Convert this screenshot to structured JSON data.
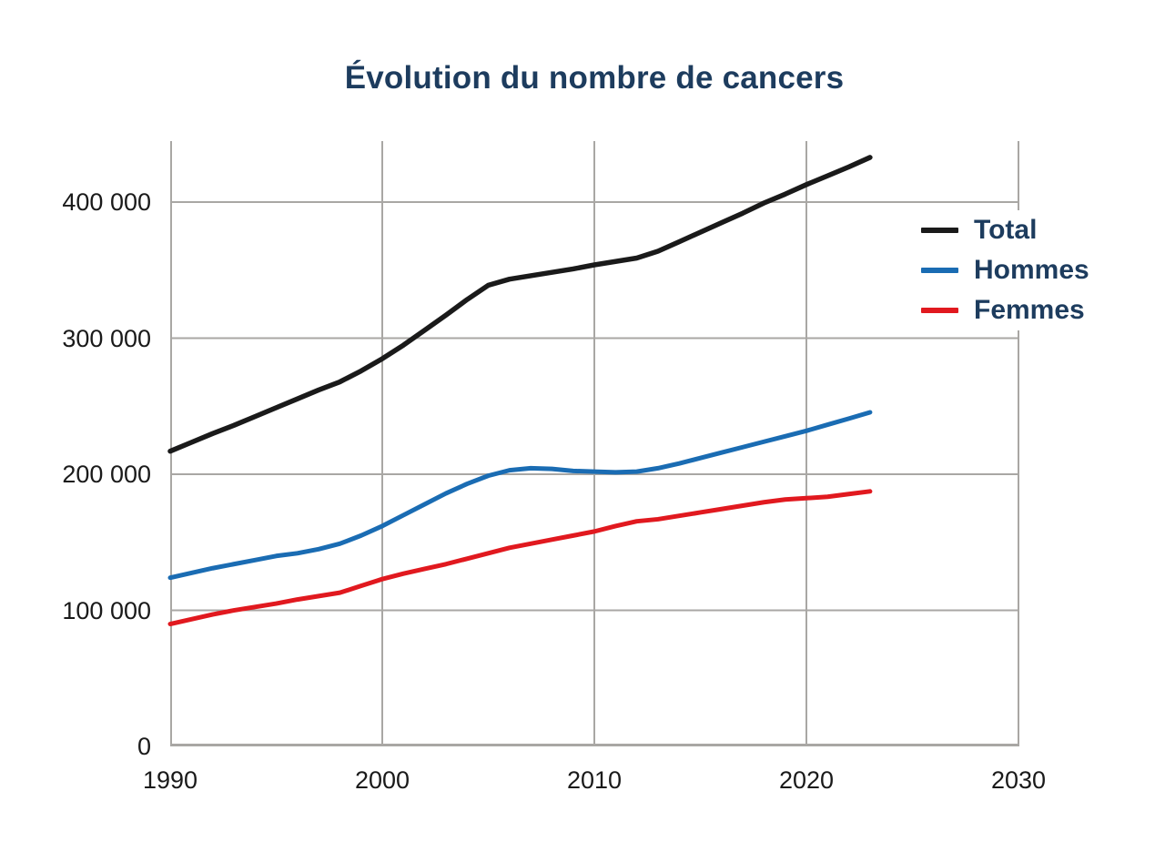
{
  "page": {
    "background_color": "#ffffff"
  },
  "title": {
    "text": "Évolution du nombre de cancers",
    "color": "#1d3c5e"
  },
  "legend": {
    "position": "upper-right",
    "items": [
      {
        "label": "Total",
        "color": "#1a1a1a"
      },
      {
        "label": "Hommes",
        "color": "#1a6cb3"
      },
      {
        "label": "Femmes",
        "color": "#e1191f"
      }
    ]
  },
  "chart_data": {
    "type": "line",
    "title": "Évolution du nombre de cancers",
    "xlabel": "",
    "ylabel": "",
    "xlim": [
      1990,
      2030
    ],
    "ylim": [
      0,
      445000
    ],
    "grid": true,
    "grid_color": "#a9a7a4",
    "axis_color": "#a9a7a4",
    "x_gridlines": [
      2000,
      2010,
      2020,
      2030
    ],
    "y_gridlines": [
      100000,
      200000,
      300000,
      400000
    ],
    "x_ticks": [
      {
        "value": 1990,
        "label": "1990"
      },
      {
        "value": 2000,
        "label": "2000"
      },
      {
        "value": 2010,
        "label": "2010"
      },
      {
        "value": 2020,
        "label": "2020"
      },
      {
        "value": 2030,
        "label": "2030"
      }
    ],
    "y_ticks": [
      {
        "value": 0,
        "label": "0"
      },
      {
        "value": 100000,
        "label": "100 000"
      },
      {
        "value": 200000,
        "label": "200 000"
      },
      {
        "value": 300000,
        "label": "300 000"
      },
      {
        "value": 400000,
        "label": "400 000"
      }
    ],
    "x": [
      1990,
      1991,
      1992,
      1993,
      1994,
      1995,
      1996,
      1997,
      1998,
      1999,
      2000,
      2001,
      2002,
      2003,
      2004,
      2005,
      2006,
      2007,
      2008,
      2009,
      2010,
      2011,
      2012,
      2013,
      2014,
      2015,
      2016,
      2017,
      2018,
      2019,
      2020,
      2021,
      2022,
      2023
    ],
    "series": [
      {
        "name": "Total",
        "color": "#1a1a1a",
        "stroke_width": 5.5,
        "values": [
          217000,
          223500,
          230000,
          236000,
          242500,
          249000,
          255500,
          262000,
          268000,
          276000,
          285000,
          295000,
          306000,
          317000,
          328500,
          339000,
          343500,
          346000,
          348500,
          351000,
          354000,
          356500,
          359000,
          364000,
          371000,
          378000,
          385000,
          392000,
          399500,
          406000,
          413000,
          419500,
          426000,
          433000
        ]
      },
      {
        "name": "Hommes",
        "color": "#1a6cb3",
        "stroke_width": 5,
        "values": [
          124000,
          127500,
          131000,
          134000,
          137000,
          140000,
          142000,
          145000,
          149000,
          155000,
          162000,
          170000,
          178000,
          186000,
          193000,
          199000,
          203000,
          204500,
          204000,
          202500,
          202000,
          201500,
          202000,
          204500,
          208000,
          212000,
          216000,
          220000,
          224000,
          228000,
          232000,
          236500,
          241000,
          245600
        ]
      },
      {
        "name": "Femmes",
        "color": "#e1191f",
        "stroke_width": 5,
        "values": [
          90000,
          93500,
          97000,
          100000,
          102500,
          105000,
          108000,
          110500,
          113000,
          118000,
          123000,
          127000,
          130500,
          134000,
          138000,
          142000,
          146000,
          149000,
          152000,
          155000,
          158000,
          162000,
          165500,
          167000,
          169500,
          172000,
          174500,
          177000,
          179500,
          181500,
          182500,
          183500,
          185500,
          187500
        ]
      }
    ]
  }
}
